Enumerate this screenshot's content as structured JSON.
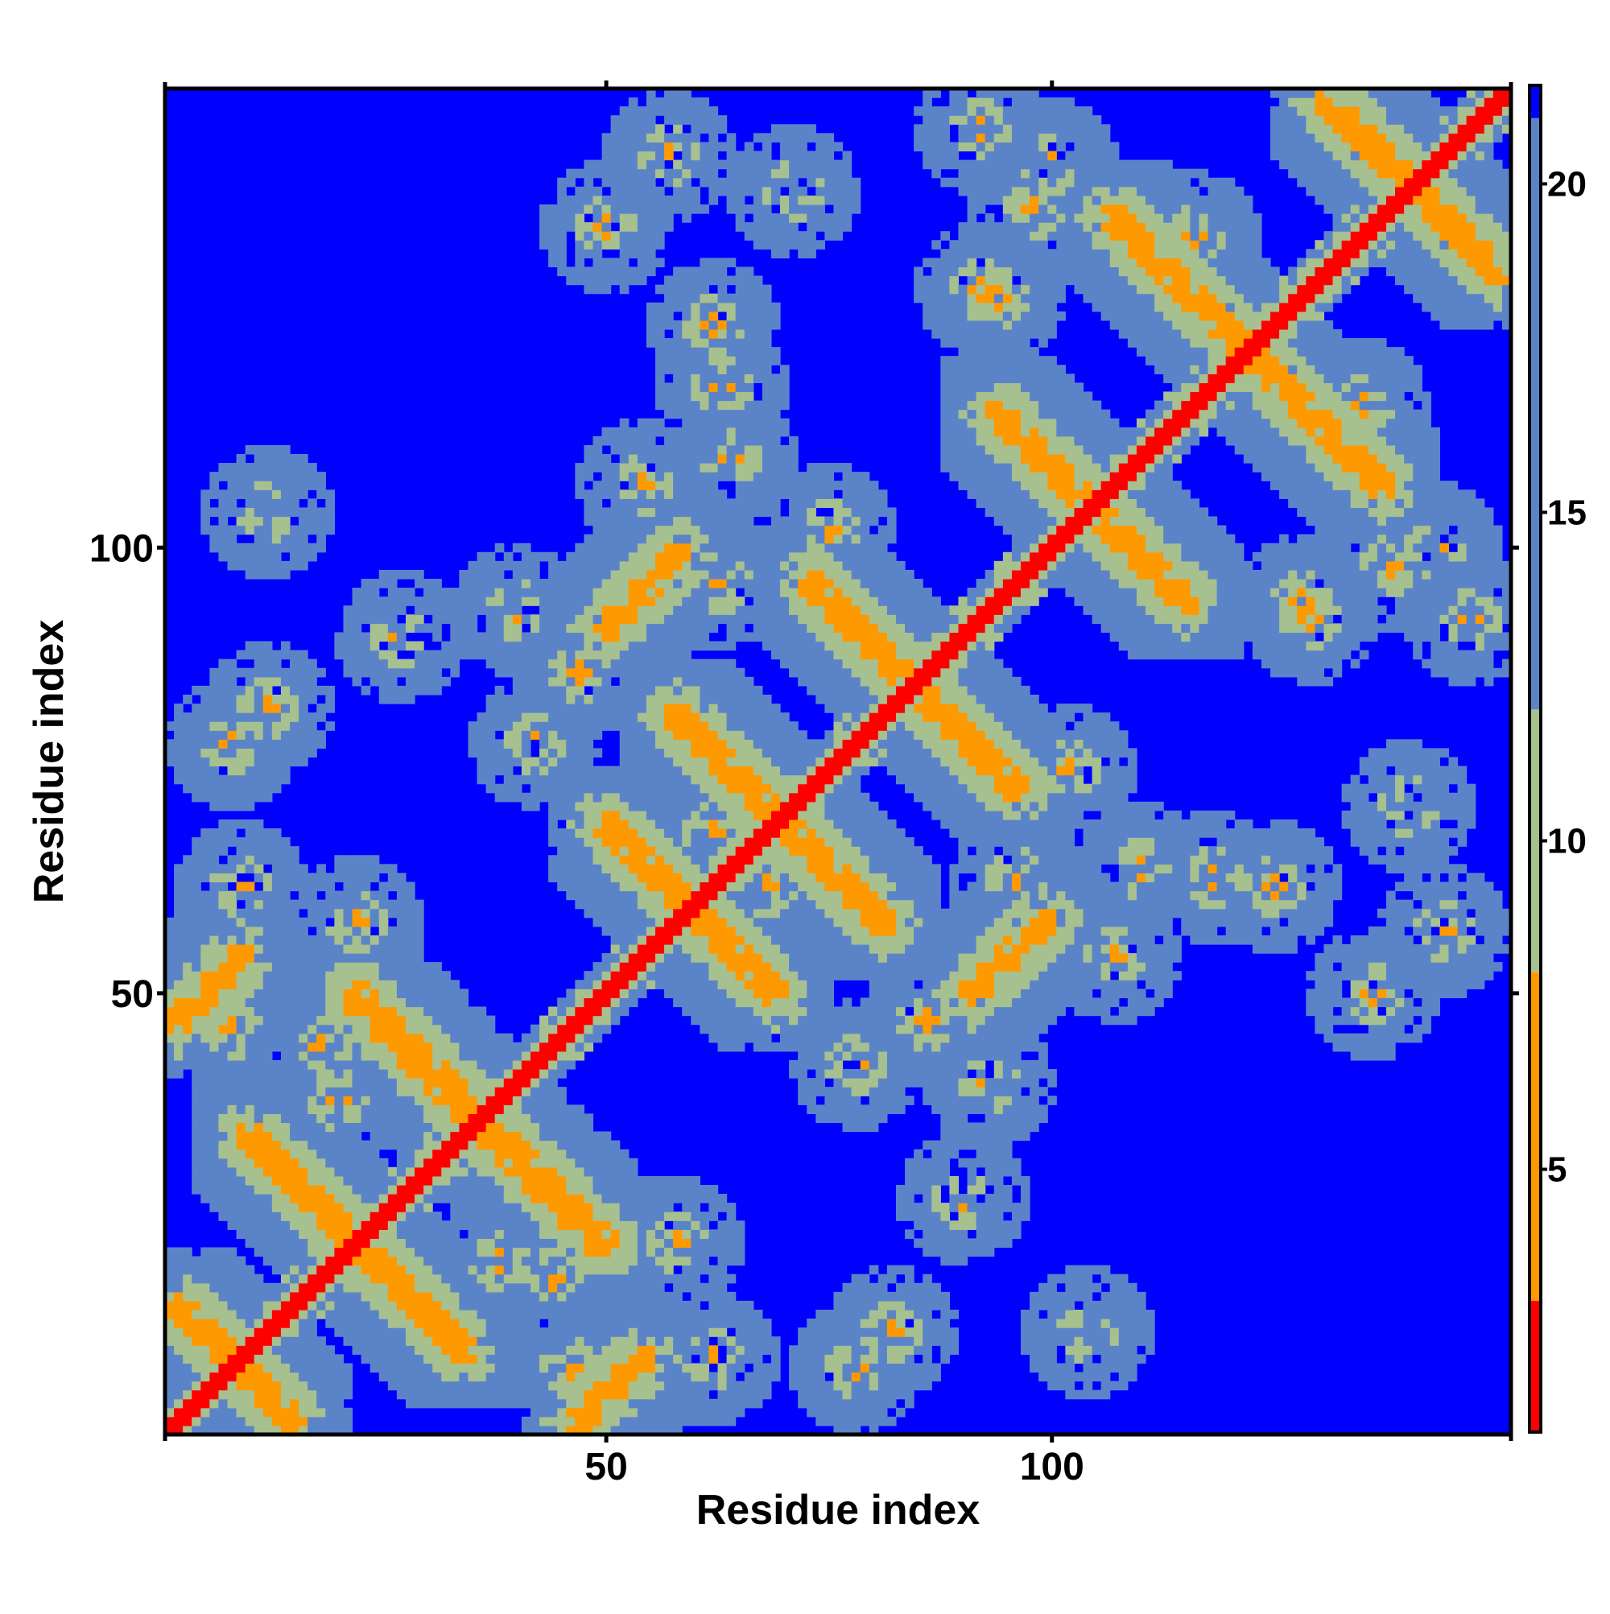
{
  "chart_data": {
    "type": "heatmap",
    "title": "",
    "xlabel": "Residue index",
    "ylabel": "Residue index",
    "n_residues": 151,
    "xlim": [
      1,
      151
    ],
    "ylim": [
      1,
      151
    ],
    "x_ticks": [
      50,
      100
    ],
    "y_ticks": [
      50,
      100
    ],
    "colorbar": {
      "min": 1,
      "max": 21.5,
      "ticks": [
        5,
        10,
        15,
        20
      ],
      "color_segments": [
        {
          "from": 1,
          "to": 3,
          "color": "#ff0000"
        },
        {
          "from": 3,
          "to": 8,
          "color": "#ff9900"
        },
        {
          "from": 8,
          "to": 12,
          "color": "#a7c08f"
        },
        {
          "from": 12,
          "to": 21,
          "color": "#5b84c8"
        },
        {
          "from": 21,
          "to": 21.5,
          "color": "#0000ff"
        }
      ]
    },
    "background_value": 21.5,
    "background_color": "#0000ff",
    "diagonal": {
      "value": 1,
      "color": "#ff0000",
      "half_width_residues": 1
    },
    "near_diagonal_band": {
      "width_residues": 4,
      "value": 11
    },
    "contact_bands": [
      {
        "kind": "anti-parallel",
        "i_start": 2,
        "j_start": 15,
        "i_end": 14,
        "j_end": 3
      },
      {
        "kind": "anti-parallel",
        "i_start": 10,
        "j_start": 34,
        "i_end": 34,
        "j_end": 10
      },
      {
        "kind": "anti-parallel",
        "i_start": 22,
        "j_start": 50,
        "i_end": 49,
        "j_end": 22
      },
      {
        "kind": "anti-parallel",
        "i_start": 50,
        "j_start": 69,
        "i_end": 68,
        "j_end": 51
      },
      {
        "kind": "anti-parallel",
        "i_start": 58,
        "j_start": 81,
        "i_end": 81,
        "j_end": 58
      },
      {
        "kind": "anti-parallel",
        "i_start": 73,
        "j_start": 96,
        "i_end": 96,
        "j_end": 73
      },
      {
        "kind": "anti-parallel",
        "i_start": 94,
        "j_start": 115,
        "i_end": 115,
        "j_end": 94
      },
      {
        "kind": "anti-parallel",
        "i_start": 107,
        "j_start": 137,
        "i_end": 137,
        "j_end": 107
      },
      {
        "kind": "anti-parallel",
        "i_start": 131,
        "j_start": 150,
        "i_end": 150,
        "j_end": 131
      },
      {
        "kind": "parallel",
        "i_start": 2,
        "j_start": 47,
        "i_end": 9,
        "j_end": 54
      },
      {
        "kind": "parallel",
        "i_start": 50,
        "j_start": 91,
        "i_end": 58,
        "j_end": 99
      }
    ],
    "contact_clusters": [
      {
        "i": 8,
        "j": 78
      },
      {
        "i": 9,
        "j": 62
      },
      {
        "i": 12,
        "j": 104
      },
      {
        "i": 18,
        "j": 44
      },
      {
        "i": 22,
        "j": 58
      },
      {
        "i": 27,
        "j": 90
      },
      {
        "i": 38,
        "j": 20
      },
      {
        "i": 40,
        "j": 93
      },
      {
        "i": 46,
        "j": 8
      },
      {
        "i": 50,
        "j": 136
      },
      {
        "i": 54,
        "j": 107
      },
      {
        "i": 57,
        "j": 144
      },
      {
        "i": 62,
        "j": 125
      },
      {
        "i": 63,
        "j": 96
      },
      {
        "i": 68,
        "j": 62
      },
      {
        "i": 78,
        "j": 42
      },
      {
        "i": 82,
        "j": 12
      },
      {
        "i": 86,
        "j": 47
      },
      {
        "i": 92,
        "j": 129
      },
      {
        "i": 98,
        "j": 138
      },
      {
        "i": 100,
        "j": 58
      },
      {
        "i": 102,
        "j": 75
      },
      {
        "i": 110,
        "j": 64
      },
      {
        "i": 118,
        "j": 63
      },
      {
        "i": 128,
        "j": 94
      },
      {
        "i": 135,
        "j": 116
      },
      {
        "i": 140,
        "j": 71
      },
      {
        "i": 143,
        "j": 100
      },
      {
        "i": 147,
        "j": 92
      }
    ],
    "grid": false,
    "legend": "colorbar-right"
  }
}
